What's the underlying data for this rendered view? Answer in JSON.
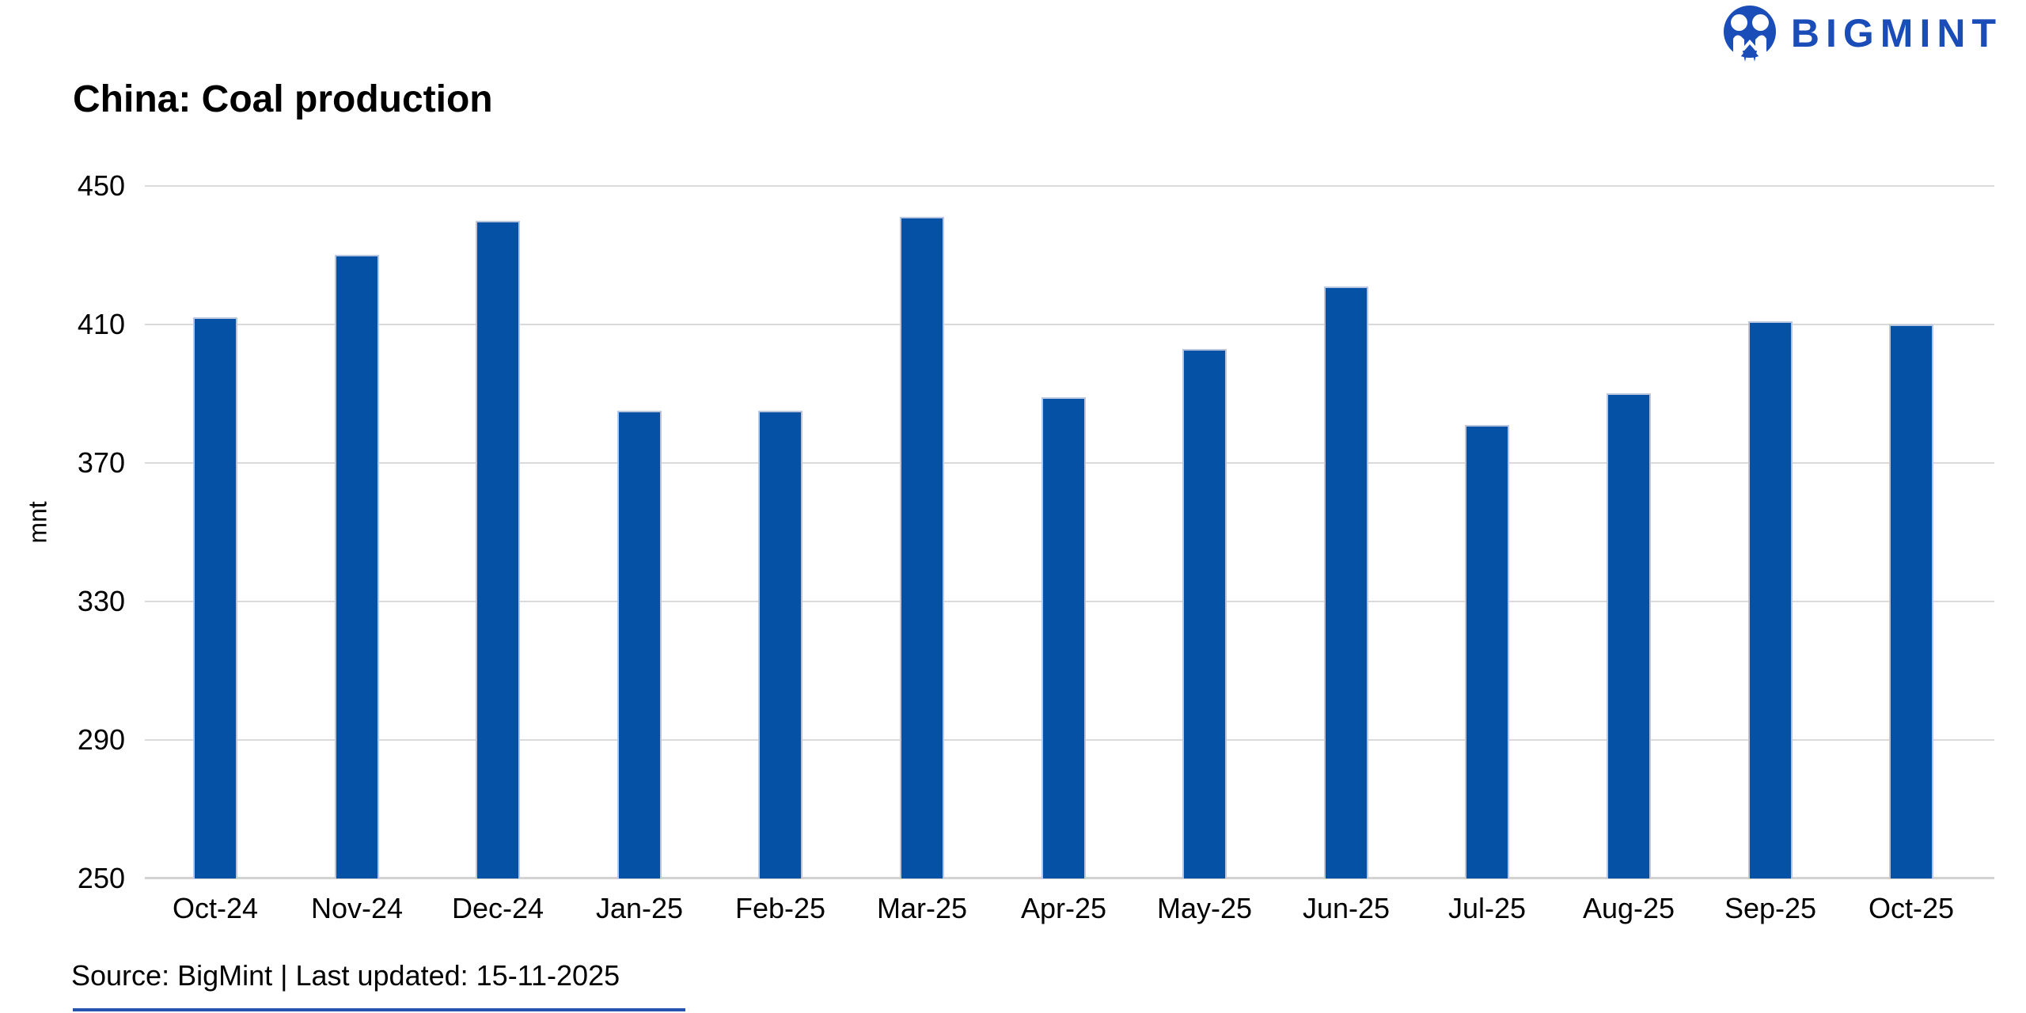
{
  "header": {
    "title": "China: Coal production",
    "brand": {
      "name": "BIGMINT",
      "logo_icon": "bigmint-monogram-circle",
      "color": "#1b4db8"
    }
  },
  "chart_data": {
    "type": "bar",
    "title": "China: Coal production",
    "xlabel": "",
    "ylabel": "mnt",
    "ylim": [
      250,
      450
    ],
    "yticks": [
      450,
      410,
      370,
      330,
      290,
      250
    ],
    "grid": "horizontal-only",
    "legend": "none",
    "bar_color": "#0551a5",
    "categories": [
      "Oct-24",
      "Nov-24",
      "Dec-24",
      "Jan-25",
      "Feb-25",
      "Mar-25",
      "Apr-25",
      "May-25",
      "Jun-25",
      "Jul-25",
      "Aug-25",
      "Sep-25",
      "Oct-25"
    ],
    "values": [
      412,
      430,
      440,
      385,
      385,
      441,
      389,
      403,
      421,
      381,
      390,
      411,
      410
    ]
  },
  "footer": {
    "source_line": "Source: BigMint | Last updated: 15-11-2025"
  }
}
